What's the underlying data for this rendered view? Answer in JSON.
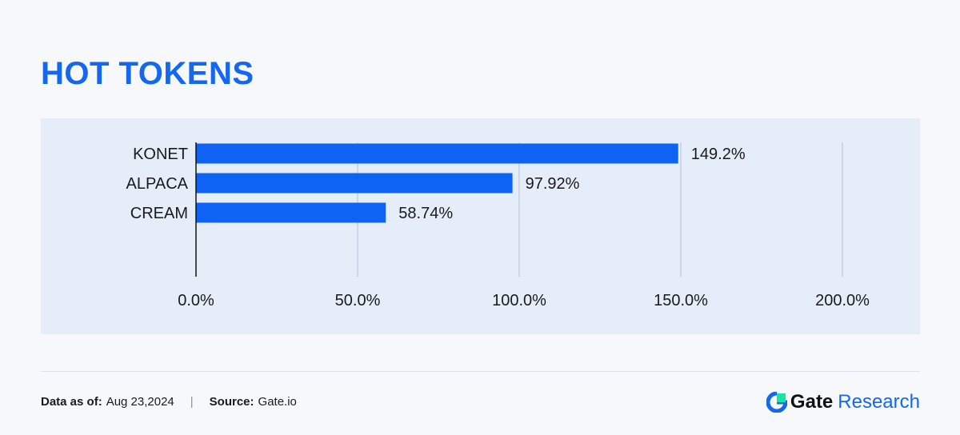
{
  "title": "HOT TOKENS",
  "chart_data": {
    "type": "bar",
    "orientation": "horizontal",
    "categories": [
      "KONET",
      "ALPACA",
      "CREAM"
    ],
    "values": [
      149.2,
      97.92,
      58.74
    ],
    "value_labels": [
      "149.2%",
      "97.92%",
      "58.74%"
    ],
    "xlim": [
      0,
      200
    ],
    "xticks": [
      0,
      50,
      100,
      150,
      200
    ],
    "xtick_labels": [
      "0.0%",
      "50.0%",
      "100.0%",
      "150.0%",
      "200.0%"
    ],
    "grid": true,
    "bar_color": "#0e63f4"
  },
  "footer": {
    "date_label": "Data as of:",
    "date_value": "Aug 23,2024",
    "separator": "|",
    "source_label": "Source:",
    "source_value": "Gate.io"
  },
  "brand": {
    "name": "Gate",
    "suffix": "Research",
    "icon": "gate-logo-icon",
    "colors": {
      "primary": "#1567f0",
      "accent": "#17e6a1"
    }
  }
}
